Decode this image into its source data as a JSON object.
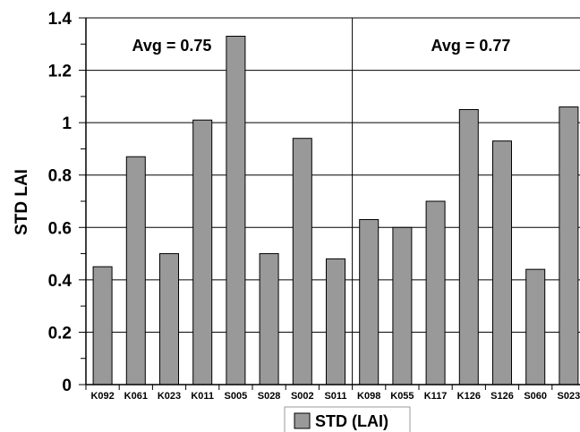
{
  "chart_data": {
    "type": "bar",
    "ylabel": "STD LAI",
    "ylim": [
      0,
      1.4
    ],
    "yticks": [
      "0",
      "0.2",
      "0.4",
      "0.6",
      "0.8",
      "1",
      "1.2",
      "1.4"
    ],
    "grid": "horizontal",
    "categories": [
      "K092",
      "K061",
      "K023",
      "K011",
      "S005",
      "S028",
      "S002",
      "S011",
      "K098",
      "K055",
      "K117",
      "K126",
      "S126",
      "S060",
      "S023"
    ],
    "series": [
      {
        "name": "STD (LAI)",
        "color": "#999999",
        "values": [
          0.45,
          0.87,
          0.5,
          1.01,
          1.33,
          0.5,
          0.94,
          0.48,
          0.63,
          0.6,
          0.7,
          1.05,
          0.93,
          0.44,
          1.06
        ]
      }
    ],
    "annotations": [
      "Avg = 0.75",
      "Avg = 0.77"
    ],
    "legend_position": "bottom"
  }
}
